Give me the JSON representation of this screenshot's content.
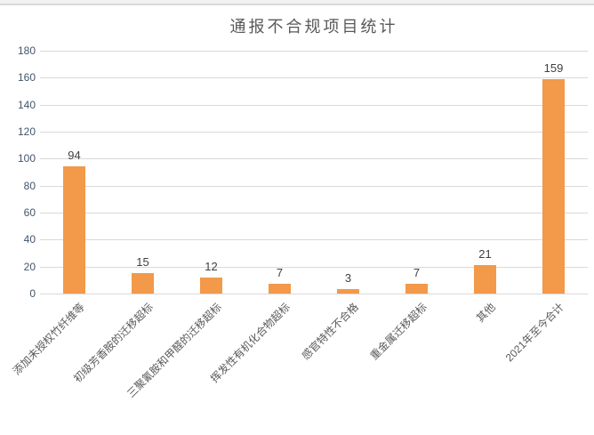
{
  "window": {
    "top_border": true
  },
  "chart_data": {
    "type": "bar",
    "title": "通报不合规项目统计",
    "categories": [
      "添加未授权竹纤维等",
      "初级芳香胺的迁移超标",
      "三聚氰胺和甲醛的迁移超标",
      "挥发性有机化合物超标",
      "感官特性不合格",
      "重金属迁移超标",
      "其他",
      "2021年至今合计"
    ],
    "values": [
      94,
      15,
      12,
      7,
      3,
      7,
      21,
      159
    ],
    "xlabel": "",
    "ylabel": "",
    "ylim": [
      0,
      180
    ],
    "yticks": [
      0,
      20,
      40,
      60,
      80,
      100,
      120,
      140,
      160,
      180
    ],
    "grid": true,
    "legend": "none",
    "x_tick_rotation_deg": 45,
    "colors": {
      "bar": "#f2994a",
      "gridline": "#d9d9d9",
      "ytick_text": "#44546a",
      "value_label_text": "#404040",
      "category_text": "#595959",
      "title_text": "#595959",
      "top_strip_bg": "#f2f2f2",
      "top_strip_border": "#d8d8d8"
    }
  }
}
